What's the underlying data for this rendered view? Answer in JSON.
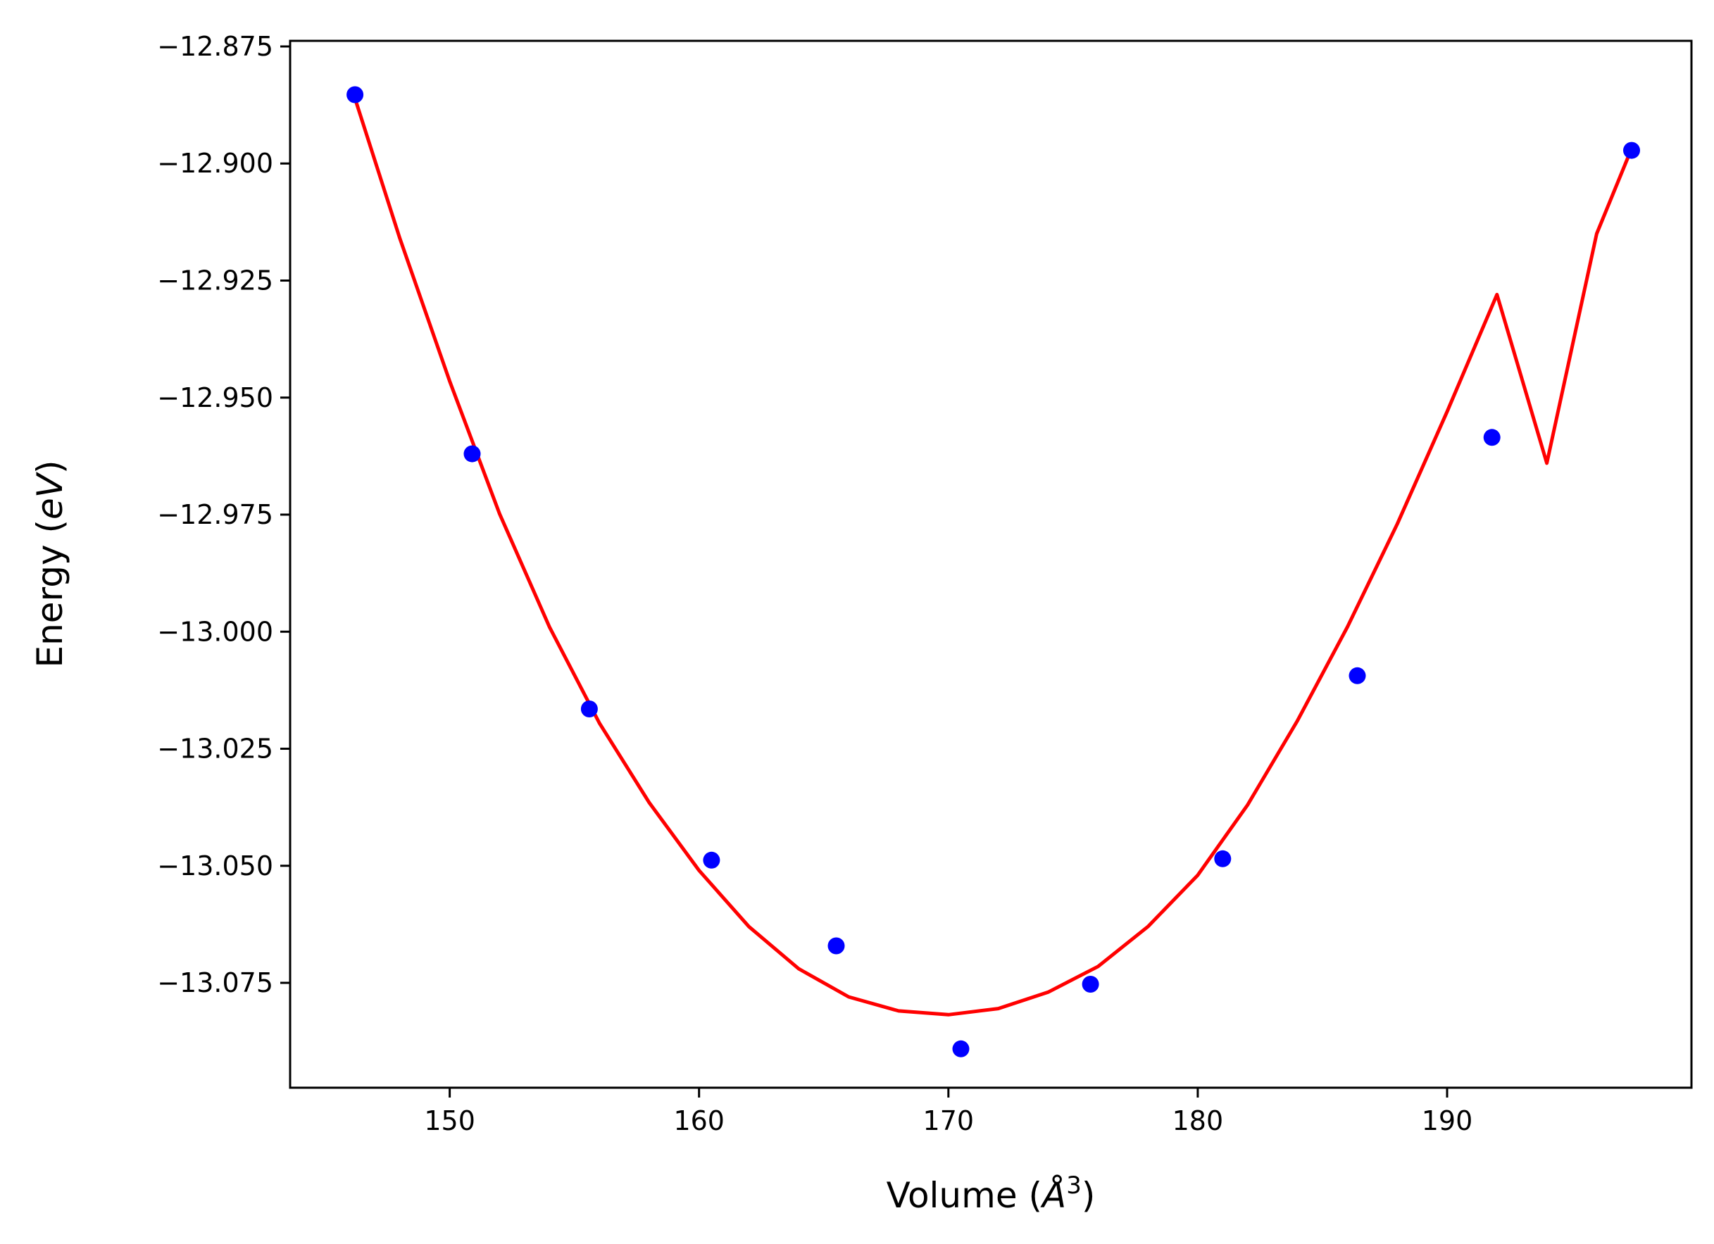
{
  "chart_data": {
    "type": "scatter",
    "title": "",
    "xlabel_parts": [
      "Volume (",
      "Å",
      "3",
      ")"
    ],
    "ylabel_parts": [
      "Energy (",
      "eV",
      ")"
    ],
    "xlim": [
      143.6,
      199.8
    ],
    "ylim": [
      -13.0974,
      -12.8738
    ],
    "xticks": [
      150,
      160,
      170,
      180,
      190
    ],
    "xtick_labels": [
      "150",
      "160",
      "170",
      "180",
      "190"
    ],
    "yticks": [
      -12.875,
      -12.9,
      -12.925,
      -12.95,
      -12.975,
      -13.0,
      -13.025,
      -13.05,
      -13.075
    ],
    "ytick_labels": [
      "−12.875",
      "−12.900",
      "−12.925",
      "−12.950",
      "−12.975",
      "−13.000",
      "−13.025",
      "−13.050",
      "−13.075"
    ],
    "grid": false,
    "series": [
      {
        "kind": "points",
        "color": "#0000ff",
        "x": [
          146.2,
          150.9,
          155.6,
          160.5,
          165.5,
          170.5,
          175.7,
          181.0,
          186.4,
          191.8,
          197.4
        ],
        "y": [
          -12.8853,
          -12.962,
          -13.0165,
          -13.0488,
          -13.0671,
          -13.0891,
          -13.0753,
          -13.0485,
          -13.0094,
          -12.9585,
          -12.8972
        ]
      },
      {
        "kind": "fit-curve",
        "color": "#ff0000",
        "x": [
          146.2,
          148.0,
          150.0,
          152.0,
          154.0,
          156.0,
          158.0,
          160.0,
          162.0,
          164.0,
          166.0,
          168.0,
          170.0,
          172.0,
          174.0,
          176.0,
          178.0,
          180.0,
          182.0,
          184.0,
          186.0,
          188.0,
          190.0,
          192.0,
          194.0,
          196.0,
          197.4
        ],
        "y": [
          -12.8861,
          -12.916,
          -12.9465,
          -12.9748,
          -12.999,
          -13.0195,
          -13.0365,
          -13.051,
          -13.063,
          -13.072,
          -13.078,
          -13.081,
          -13.0818,
          -13.0805,
          -13.077,
          -13.0715,
          -13.063,
          -13.052,
          -13.037,
          -13.019,
          -12.999,
          -12.977,
          -12.953,
          -12.928,
          -12.964,
          -12.915,
          -12.8968
        ]
      }
    ]
  }
}
